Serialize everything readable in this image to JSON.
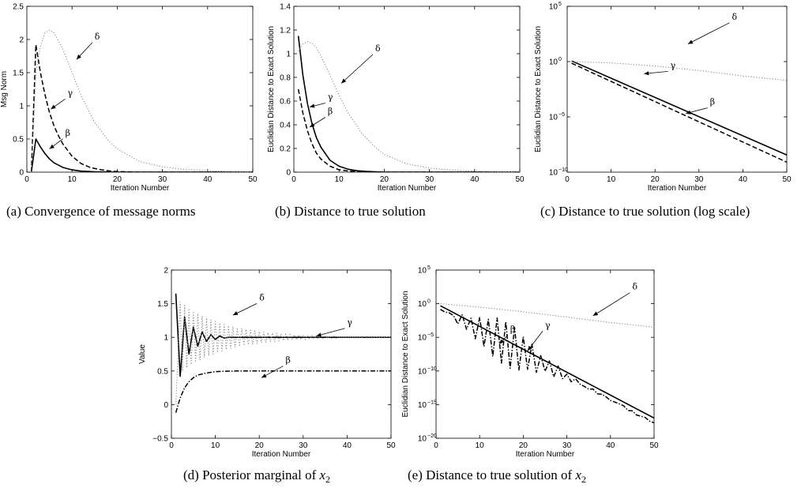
{
  "chart_data": [
    {
      "id": "a",
      "type": "line",
      "caption": "(a) Convergence of message norms",
      "xlabel": "Iteration Number",
      "ylabel": "Msg Norm",
      "xlim": [
        0,
        50
      ],
      "ylim": [
        0,
        2.5
      ],
      "yscale": "linear",
      "xticks": [
        0,
        10,
        20,
        30,
        40,
        50
      ],
      "yticks": [
        0,
        0.5,
        1,
        1.5,
        2,
        2.5
      ],
      "ytick_labels": [
        "0",
        "0.5",
        "1",
        "1.5",
        "2",
        "2.5"
      ],
      "series": [
        {
          "name": "β",
          "style": "solid",
          "x": [
            1,
            2,
            3,
            4,
            5,
            6,
            8,
            10,
            12,
            15,
            20,
            50
          ],
          "y": [
            0,
            0.5,
            0.38,
            0.28,
            0.2,
            0.14,
            0.07,
            0.035,
            0.015,
            0.005,
            0,
            0
          ]
        },
        {
          "name": "γ",
          "style": "dashed",
          "x": [
            1,
            2,
            3,
            4,
            5,
            6,
            7,
            8,
            10,
            12,
            14,
            16,
            18,
            20,
            25,
            50
          ],
          "y": [
            0,
            1.92,
            1.5,
            1.17,
            0.9,
            0.7,
            0.55,
            0.42,
            0.24,
            0.13,
            0.07,
            0.04,
            0.02,
            0.01,
            0,
            0
          ]
        },
        {
          "name": "δ",
          "style": "dotted",
          "x": [
            1,
            2,
            3,
            4,
            5,
            6,
            8,
            10,
            12,
            15,
            18,
            20,
            25,
            30,
            35,
            40,
            45,
            50
          ],
          "y": [
            0,
            1.5,
            1.9,
            2.1,
            2.14,
            2.1,
            1.85,
            1.5,
            1.15,
            0.75,
            0.48,
            0.35,
            0.16,
            0.08,
            0.04,
            0.02,
            0.01,
            0.005
          ]
        }
      ],
      "annotations": [
        {
          "text": "δ",
          "x": 15,
          "y": 2.0,
          "ax": 11,
          "ay": 1.7
        },
        {
          "text": "γ",
          "x": 9,
          "y": 1.15,
          "ax": 5.3,
          "ay": 0.95
        },
        {
          "text": "β",
          "x": 8.5,
          "y": 0.55,
          "ax": 5,
          "ay": 0.35
        }
      ]
    },
    {
      "id": "b",
      "type": "line",
      "caption": "(b) Distance to true solution",
      "xlabel": "Iteration Number",
      "ylabel": "Euclidian Distance to Exact Solution",
      "xlim": [
        0,
        50
      ],
      "ylim": [
        0,
        1.4
      ],
      "yscale": "linear",
      "xticks": [
        0,
        10,
        20,
        30,
        40,
        50
      ],
      "yticks": [
        0,
        0.2,
        0.4,
        0.6,
        0.8,
        1,
        1.2,
        1.4
      ],
      "ytick_labels": [
        "0",
        "0.2",
        "0.4",
        "0.6",
        "0.8",
        "1",
        "1.2",
        "1.4"
      ],
      "series": [
        {
          "name": "β",
          "style": "solid",
          "x": [
            1,
            2,
            3,
            4,
            5,
            6,
            8,
            10,
            12,
            14,
            16,
            18,
            20,
            50
          ],
          "y": [
            1.15,
            0.82,
            0.58,
            0.41,
            0.29,
            0.21,
            0.1,
            0.05,
            0.025,
            0.012,
            0.006,
            0.003,
            0,
            0
          ]
        },
        {
          "name": "γ",
          "style": "dashed",
          "x": [
            1,
            2,
            3,
            4,
            5,
            6,
            8,
            10,
            12,
            14,
            16,
            50
          ],
          "y": [
            0.7,
            0.5,
            0.35,
            0.24,
            0.16,
            0.11,
            0.05,
            0.02,
            0.01,
            0.004,
            0,
            0
          ]
        },
        {
          "name": "δ",
          "style": "dotted",
          "x": [
            1,
            2,
            3,
            4,
            5,
            6,
            8,
            10,
            12,
            15,
            18,
            20,
            25,
            30,
            35,
            40,
            45,
            50
          ],
          "y": [
            1.02,
            1.08,
            1.1,
            1.09,
            1.05,
            0.98,
            0.82,
            0.65,
            0.5,
            0.33,
            0.21,
            0.15,
            0.07,
            0.035,
            0.017,
            0.008,
            0.004,
            0.002
          ]
        }
      ],
      "annotations": [
        {
          "text": "δ",
          "x": 18,
          "y": 1.02,
          "ax": 10.5,
          "ay": 0.75
        },
        {
          "text": "γ",
          "x": 7.5,
          "y": 0.61,
          "ax": 3.5,
          "ay": 0.55
        },
        {
          "text": "β",
          "x": 7.5,
          "y": 0.49,
          "ax": 3.5,
          "ay": 0.38
        }
      ]
    },
    {
      "id": "c",
      "type": "line",
      "caption": "(c) Distance to true solution (log scale)",
      "xlabel": "Iteration Number",
      "ylabel": "Euclidian Distance to Exact Solution",
      "xlim": [
        0,
        50
      ],
      "ylim": [
        -10,
        5
      ],
      "yscale": "log10",
      "xticks": [
        0,
        10,
        20,
        30,
        40,
        50
      ],
      "yticks": [
        -10,
        -5,
        0,
        5
      ],
      "ytick_labels": [
        "10",
        "10",
        "10",
        "10"
      ],
      "ytick_exponents": [
        "−10",
        "−5",
        "0",
        "5"
      ],
      "series": [
        {
          "name": "β",
          "style": "solid",
          "x": [
            1,
            50
          ],
          "y": [
            0.06,
            -8.45
          ]
        },
        {
          "name": "γ",
          "style": "dashed",
          "x": [
            1,
            50
          ],
          "y": [
            -0.15,
            -9.1
          ]
        },
        {
          "name": "δ",
          "style": "dotted",
          "x": [
            1,
            10,
            20,
            30,
            40,
            50
          ],
          "y": [
            0.0,
            -0.12,
            -0.4,
            -0.8,
            -1.3,
            -1.7
          ]
        }
      ],
      "annotations": [
        {
          "text": "δ",
          "x": 37.5,
          "y": 3.8,
          "ax": 27.5,
          "ay": 1.6
        },
        {
          "text": "γ",
          "x": 23.5,
          "y": -0.6,
          "ax": 17.5,
          "ay": -1.1
        },
        {
          "text": "β",
          "x": 32.5,
          "y": -3.9,
          "ax": 27,
          "ay": -4.7
        }
      ]
    },
    {
      "id": "d",
      "type": "line",
      "caption": "(d) Posterior marginal of ",
      "caption_var": "x",
      "caption_sub": "2",
      "xlabel": "Iteration Number",
      "ylabel": "Value",
      "xlim": [
        0,
        50
      ],
      "ylim": [
        -0.5,
        2
      ],
      "yscale": "linear",
      "xticks": [
        0,
        10,
        20,
        30,
        40,
        50
      ],
      "yticks": [
        -0.5,
        0,
        0.5,
        1,
        1.5,
        2
      ],
      "ytick_labels": [
        "−0.5",
        "0",
        "0.5",
        "1",
        "1.5",
        "2"
      ],
      "series": [
        {
          "name": "γ",
          "style": "solid",
          "x": [
            1,
            2,
            3,
            4,
            5,
            6,
            7,
            8,
            9,
            10,
            11,
            12,
            13,
            14,
            50
          ],
          "y": [
            1.65,
            0.42,
            1.3,
            0.75,
            1.15,
            0.87,
            1.08,
            0.94,
            1.04,
            0.97,
            1.02,
            0.99,
            1.0,
            1.0,
            1.0
          ]
        },
        {
          "name": "β",
          "style": "dashdot",
          "x": [
            1,
            2,
            3,
            4,
            5,
            6,
            8,
            10,
            12,
            15,
            20,
            50
          ],
          "y": [
            -0.12,
            0.1,
            0.25,
            0.34,
            0.4,
            0.44,
            0.47,
            0.49,
            0.495,
            0.5,
            0.5,
            0.5
          ]
        },
        {
          "name": "δ",
          "style": "dotted",
          "x": [],
          "y": []
        }
      ],
      "annotations": [
        {
          "text": "δ",
          "x": 20,
          "y": 1.55,
          "ax": 14,
          "ay": 1.33
        },
        {
          "text": "γ",
          "x": 40,
          "y": 1.18,
          "ax": 33,
          "ay": 1.02
        },
        {
          "text": "β",
          "x": 26,
          "y": 0.62,
          "ax": 20.5,
          "ay": 0.4
        }
      ]
    },
    {
      "id": "e",
      "type": "line",
      "caption": "(e) Distance to true solution of ",
      "caption_var": "x",
      "caption_sub": "2",
      "xlabel": "Iteration Number",
      "ylabel": "Euclidian Distance to Exact Solution",
      "xlim": [
        0,
        50
      ],
      "ylim": [
        -20,
        5
      ],
      "yscale": "log10",
      "xticks": [
        0,
        10,
        20,
        30,
        40,
        50
      ],
      "yticks": [
        -20,
        -15,
        -10,
        -5,
        0,
        5
      ],
      "ytick_labels": [
        "10",
        "10",
        "10",
        "10",
        "10",
        "10"
      ],
      "ytick_exponents": [
        "−20",
        "−15",
        "−10",
        "−5",
        "0",
        "5"
      ],
      "series": [
        {
          "name": "γ",
          "style": "solid",
          "x": [
            1,
            50
          ],
          "y": [
            -0.3,
            -17.0
          ]
        },
        {
          "name": "β",
          "style": "dashdot",
          "x": [],
          "y": []
        },
        {
          "name": "δ",
          "style": "dotted",
          "x": [
            1,
            10,
            20,
            30,
            40,
            50
          ],
          "y": [
            0.0,
            -0.5,
            -1.2,
            -2.0,
            -2.8,
            -3.5
          ]
        }
      ],
      "annotations": [
        {
          "text": "δ",
          "x": 45,
          "y": 2.1,
          "ax": 36,
          "ay": -1.8
        },
        {
          "text": "γ",
          "x": 25,
          "y": -3.6,
          "ax": 21,
          "ay": -7.0
        },
        {
          "text": "β",
          "x": 17,
          "y": -4.2,
          "ax": 14.5,
          "ay": -6.0
        }
      ]
    }
  ]
}
